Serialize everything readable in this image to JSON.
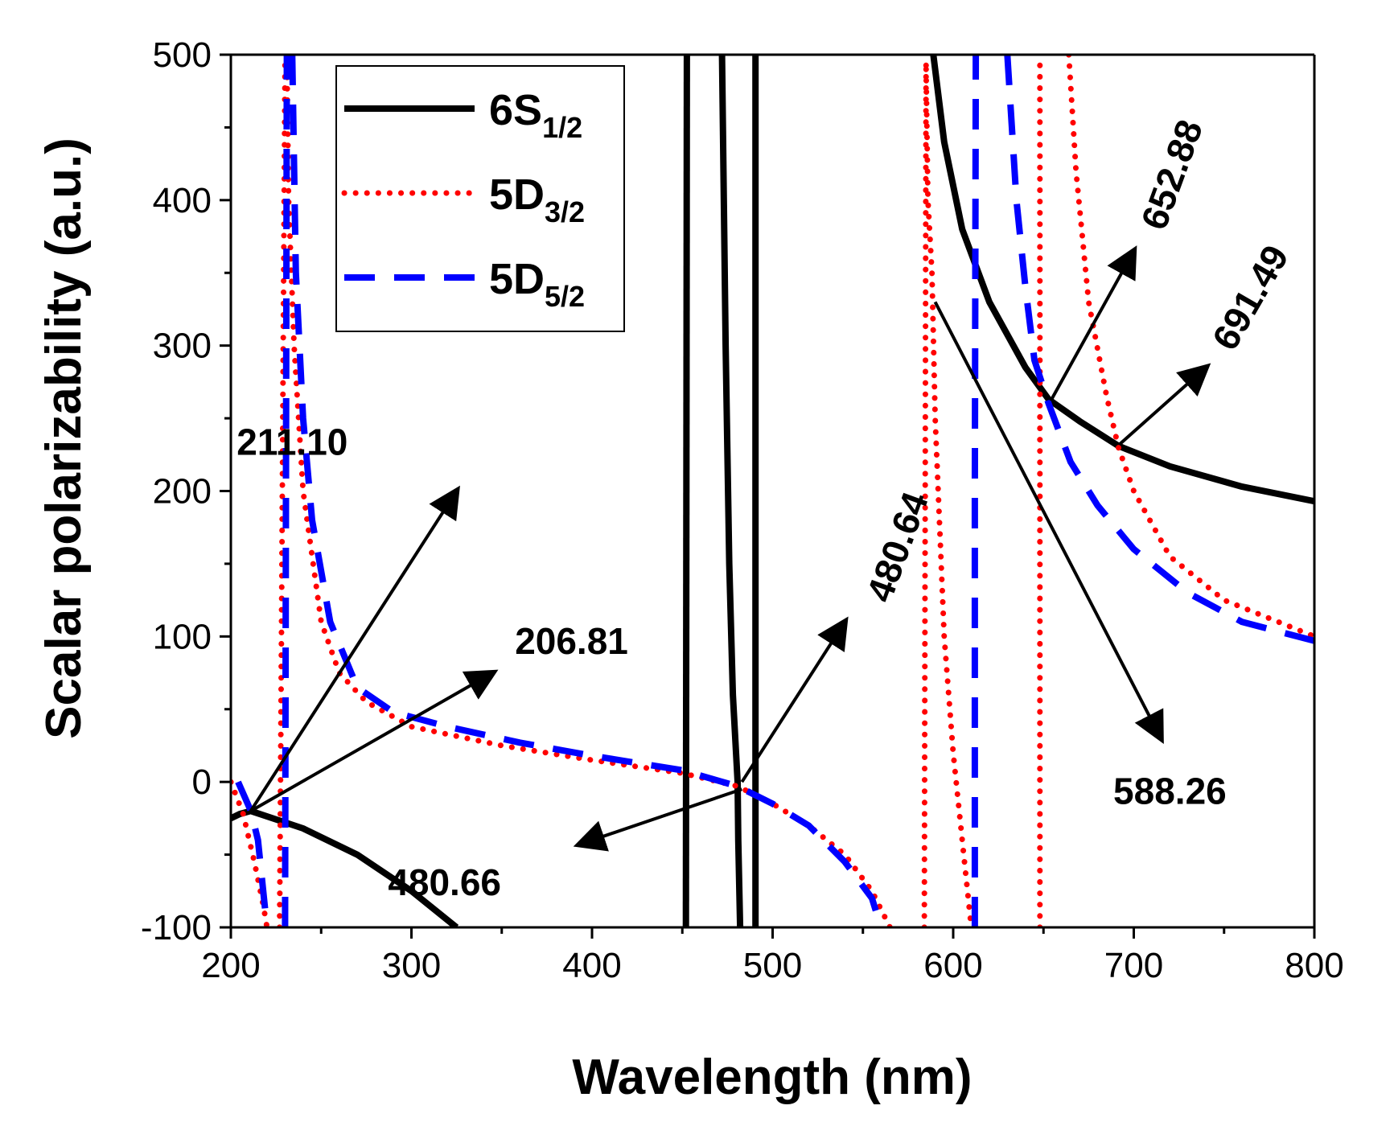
{
  "chart_data": {
    "type": "line",
    "title": "",
    "xlabel": "Wavelength (nm)",
    "ylabel": "Scalar polarizability (a.u.)",
    "xlim": [
      200,
      800
    ],
    "ylim": [
      -100,
      500
    ],
    "xticks": [
      200,
      300,
      400,
      500,
      600,
      700,
      800
    ],
    "yticks": [
      -100,
      0,
      100,
      200,
      300,
      400,
      500
    ],
    "legend_position": "top-left",
    "series": [
      {
        "name": "6S1/2",
        "label_main": "6S",
        "label_sub": "1/2",
        "style": "solid",
        "color": "#000000",
        "segments": [
          [
            [
              200,
              -25
            ],
            [
              205,
              -22
            ],
            [
              211,
              -20
            ],
            [
              240,
              -32
            ],
            [
              270,
              -50
            ],
            [
              300,
              -75
            ],
            [
              325,
              -100
            ]
          ],
          [
            [
              452,
              -100
            ],
            [
              452.5,
              500
            ]
          ],
          [
            [
              472,
              500
            ],
            [
              474,
              300
            ],
            [
              476,
              150
            ],
            [
              478,
              60
            ],
            [
              480.64,
              0
            ],
            [
              481,
              -40
            ],
            [
              482,
              -100
            ]
          ],
          [
            [
              490.5,
              -100
            ],
            [
              490.5,
              500
            ]
          ],
          [
            [
              589,
              500
            ],
            [
              595,
              440
            ],
            [
              605,
              380
            ],
            [
              620,
              330
            ],
            [
              640,
              285
            ],
            [
              652.88,
              263
            ],
            [
              670,
              248
            ],
            [
              691.49,
              231
            ],
            [
              720,
              217
            ],
            [
              760,
              203
            ],
            [
              800,
              193
            ]
          ]
        ]
      },
      {
        "name": "5D3/2",
        "label_main": "5D",
        "label_sub": "3/2",
        "style": "dotted",
        "color": "#ff0000",
        "segments": [
          [
            [
              200,
              0
            ],
            [
              206.81,
              -22
            ],
            [
              213,
              -55
            ],
            [
              218,
              -85
            ],
            [
              220,
              -100
            ]
          ],
          [
            [
              227,
              -100
            ],
            [
              228,
              100
            ],
            [
              229,
              300
            ],
            [
              230,
              500
            ]
          ],
          [
            [
              231,
              500
            ],
            [
              232,
              400
            ],
            [
              235,
              300
            ],
            [
              240,
              200
            ],
            [
              250,
              110
            ],
            [
              260,
              75
            ],
            [
              275,
              55
            ],
            [
              300,
              38
            ],
            [
              350,
              25
            ],
            [
              400,
              15
            ],
            [
              450,
              6
            ],
            [
              480.66,
              -3
            ],
            [
              500,
              -15
            ],
            [
              520,
              -30
            ],
            [
              540,
              -50
            ],
            [
              555,
              -75
            ],
            [
              565,
              -100
            ]
          ],
          [
            [
              584,
              -100
            ],
            [
              584.5,
              200
            ],
            [
              585,
              500
            ]
          ],
          [
            [
              585,
              490
            ],
            [
              586,
              400
            ],
            [
              588.26,
              350
            ],
            [
              590,
              250
            ],
            [
              595,
              100
            ],
            [
              600,
              20
            ],
            [
              605,
              -40
            ],
            [
              610,
              -100
            ]
          ],
          [
            [
              648,
              -100
            ],
            [
              648,
              500
            ]
          ],
          [
            [
              664,
              500
            ],
            [
              668,
              420
            ],
            [
              675,
              330
            ],
            [
              685,
              265
            ],
            [
              691.49,
              230
            ],
            [
              700,
              200
            ],
            [
              720,
              155
            ],
            [
              750,
              125
            ],
            [
              800,
              100
            ]
          ]
        ]
      },
      {
        "name": "5D5/2",
        "label_main": "5D",
        "label_sub": "5/2",
        "style": "dashed",
        "color": "#0000ff",
        "segments": [
          [
            [
              204,
              0
            ],
            [
              211.1,
              -20
            ],
            [
              215,
              -40
            ],
            [
              220,
              -100
            ]
          ],
          [
            [
              230,
              -100
            ],
            [
              230.5,
              200
            ],
            [
              231,
              500
            ]
          ],
          [
            [
              234,
              500
            ],
            [
              236,
              350
            ],
            [
              240,
              250
            ],
            [
              245,
              180
            ],
            [
              255,
              110
            ],
            [
              270,
              65
            ],
            [
              290,
              48
            ],
            [
              320,
              38
            ],
            [
              360,
              27
            ],
            [
              400,
              18
            ],
            [
              450,
              8
            ],
            [
              480.64,
              -3
            ],
            [
              500,
              -15
            ],
            [
              520,
              -30
            ],
            [
              540,
              -55
            ],
            [
              555,
              -80
            ],
            [
              560,
              -100
            ]
          ],
          [
            [
              612,
              -100
            ],
            [
              612,
              200
            ],
            [
              612.5,
              500
            ]
          ],
          [
            [
              630,
              500
            ],
            [
              635,
              400
            ],
            [
              640,
              340
            ],
            [
              645,
              290
            ],
            [
              652.88,
              260
            ],
            [
              665,
              220
            ],
            [
              680,
              190
            ],
            [
              700,
              160
            ],
            [
              730,
              130
            ],
            [
              760,
              110
            ],
            [
              800,
              97
            ]
          ]
        ]
      }
    ],
    "annotations": [
      {
        "text": "211.10",
        "from": [
          211,
          -20
        ],
        "to": [
          325,
          200
        ],
        "label_at": [
          234,
          225
        ],
        "rotate": 0,
        "anchor": "middle"
      },
      {
        "text": "206.81",
        "from": [
          211,
          -20
        ],
        "to": [
          345,
          75
        ],
        "label_at": [
          420,
          88
        ],
        "rotate": 0,
        "anchor": "end"
      },
      {
        "text": "480.64",
        "from": [
          483,
          0
        ],
        "to": [
          540,
          110
        ],
        "label_at": [
          565,
          122
        ],
        "rotate": -70,
        "anchor": "start"
      },
      {
        "text": "480.66",
        "from": [
          483,
          -5
        ],
        "to": [
          393,
          -43
        ],
        "label_at": [
          287,
          -78
        ],
        "rotate": 0,
        "anchor": "start"
      },
      {
        "text": "588.26",
        "from": [
          590,
          330
        ],
        "to": [
          715,
          30
        ],
        "label_at": [
          720,
          -15
        ],
        "rotate": 0,
        "anchor": "middle"
      },
      {
        "text": "652.88",
        "from": [
          654,
          262
        ],
        "to": [
          700,
          365
        ],
        "label_at": [
          717,
          378
        ],
        "rotate": -70,
        "anchor": "start"
      },
      {
        "text": "691.49",
        "from": [
          692,
          232
        ],
        "to": [
          740,
          285
        ],
        "label_at": [
          755,
          295
        ],
        "rotate": -60,
        "anchor": "start"
      }
    ]
  }
}
